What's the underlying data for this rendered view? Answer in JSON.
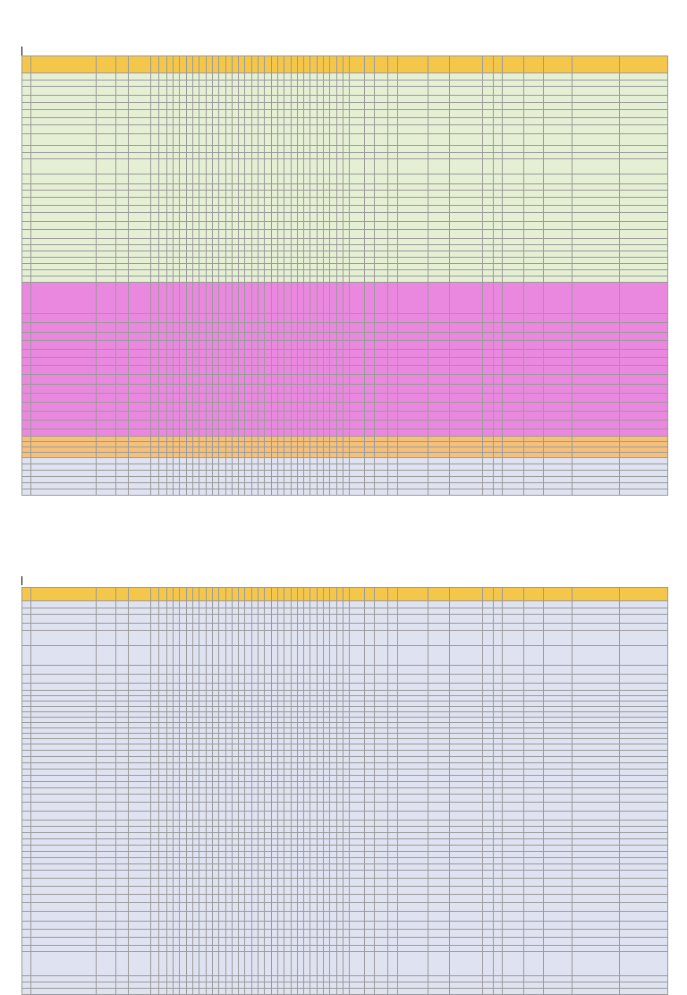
{
  "pages": [
    {
      "id": "page-1",
      "row_bands": [
        {
          "color": "green",
          "rows": 27
        },
        {
          "color": "pink",
          "rows": 15
        },
        {
          "color": "orange",
          "rows": 4
        },
        {
          "color": "blue",
          "rows": 6
        }
      ]
    },
    {
      "id": "page-2",
      "row_bands": [
        {
          "color": "blue",
          "rows": 52
        }
      ]
    }
  ],
  "colors": {
    "header": "#f4c64a",
    "green": "#e4efd3",
    "pink": "#ea88e0",
    "orange": "#f5c07a",
    "blue": "#dfe2f0"
  }
}
